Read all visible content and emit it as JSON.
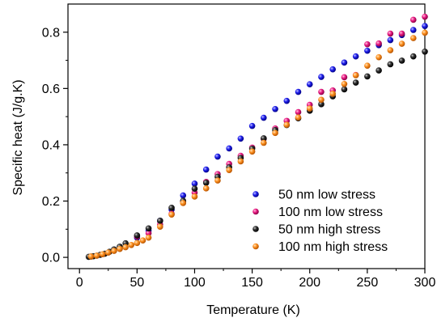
{
  "chart_data": {
    "type": "scatter",
    "xlabel": "Temperature (K)",
    "ylabel": "Specific heat (J/g.K)",
    "xlim": [
      -10,
      300
    ],
    "ylim": [
      -0.04,
      0.9
    ],
    "xticks": [
      0,
      50,
      100,
      150,
      200,
      250,
      300
    ],
    "yticks": [
      0.0,
      0.2,
      0.4,
      0.6,
      0.8
    ],
    "xtick_labels": [
      "0",
      "50",
      "100",
      "150",
      "200",
      "250",
      "300"
    ],
    "ytick_labels": [
      "0.0",
      "0.2",
      "0.4",
      "0.6",
      "0.8"
    ],
    "legend_position": "lower-right",
    "series": [
      {
        "name": "50 nm low stress",
        "color": "#1010e0",
        "x": [
          50,
          60,
          70,
          80,
          90,
          100,
          110,
          120,
          130,
          140,
          150,
          160,
          170,
          180,
          190,
          200,
          210,
          220,
          230,
          240,
          250,
          260,
          270,
          280,
          290,
          300
        ],
        "y": [
          0.07,
          0.095,
          0.13,
          0.17,
          0.22,
          0.262,
          0.312,
          0.358,
          0.387,
          0.422,
          0.467,
          0.496,
          0.527,
          0.556,
          0.588,
          0.615,
          0.641,
          0.668,
          0.692,
          0.714,
          0.734,
          0.754,
          0.772,
          0.79,
          0.808,
          0.822
        ]
      },
      {
        "name": "100 nm low stress",
        "color": "#e6147f",
        "x": [
          50,
          60,
          70,
          80,
          90,
          100,
          110,
          120,
          130,
          140,
          150,
          160,
          170,
          180,
          190,
          200,
          210,
          220,
          230,
          240,
          250,
          260,
          270,
          280,
          290,
          300
        ],
        "y": [
          0.074,
          0.086,
          0.117,
          0.155,
          0.197,
          0.23,
          0.268,
          0.296,
          0.332,
          0.361,
          0.39,
          0.421,
          0.458,
          0.485,
          0.516,
          0.542,
          0.588,
          0.593,
          0.64,
          0.648,
          0.757,
          0.76,
          0.795,
          0.795,
          0.844,
          0.855
        ]
      },
      {
        "name": "50 nm high stress",
        "color": "#000000",
        "x": [
          8,
          10,
          12,
          15,
          18,
          22,
          26,
          30,
          35,
          40,
          50,
          60,
          70,
          80,
          90,
          100,
          110,
          120,
          130,
          140,
          150,
          160,
          170,
          180,
          190,
          200,
          210,
          220,
          230,
          240,
          250,
          260,
          270,
          280,
          290,
          300
        ],
        "y": [
          0.002,
          0.003,
          0.004,
          0.006,
          0.009,
          0.013,
          0.02,
          0.028,
          0.038,
          0.05,
          0.078,
          0.103,
          0.13,
          0.176,
          0.201,
          0.244,
          0.265,
          0.286,
          0.32,
          0.353,
          0.386,
          0.423,
          0.452,
          0.47,
          0.494,
          0.521,
          0.544,
          0.572,
          0.597,
          0.621,
          0.643,
          0.664,
          0.686,
          0.699,
          0.714,
          0.731
        ]
      },
      {
        "name": "100 nm high stress",
        "color": "#ff8c14",
        "x": [
          10,
          15,
          20,
          25,
          30,
          35,
          40,
          45,
          50,
          55,
          60,
          70,
          80,
          90,
          100,
          110,
          120,
          130,
          140,
          150,
          160,
          170,
          180,
          190,
          200,
          210,
          220,
          230,
          240,
          250,
          260,
          270,
          280,
          290,
          300
        ],
        "y": [
          0.003,
          0.006,
          0.011,
          0.017,
          0.023,
          0.03,
          0.036,
          0.044,
          0.051,
          0.06,
          0.07,
          0.109,
          0.152,
          0.193,
          0.216,
          0.245,
          0.273,
          0.31,
          0.341,
          0.376,
          0.407,
          0.442,
          0.471,
          0.497,
          0.529,
          0.56,
          0.581,
          0.616,
          0.647,
          0.681,
          0.711,
          0.736,
          0.759,
          0.779,
          0.798
        ]
      }
    ]
  }
}
